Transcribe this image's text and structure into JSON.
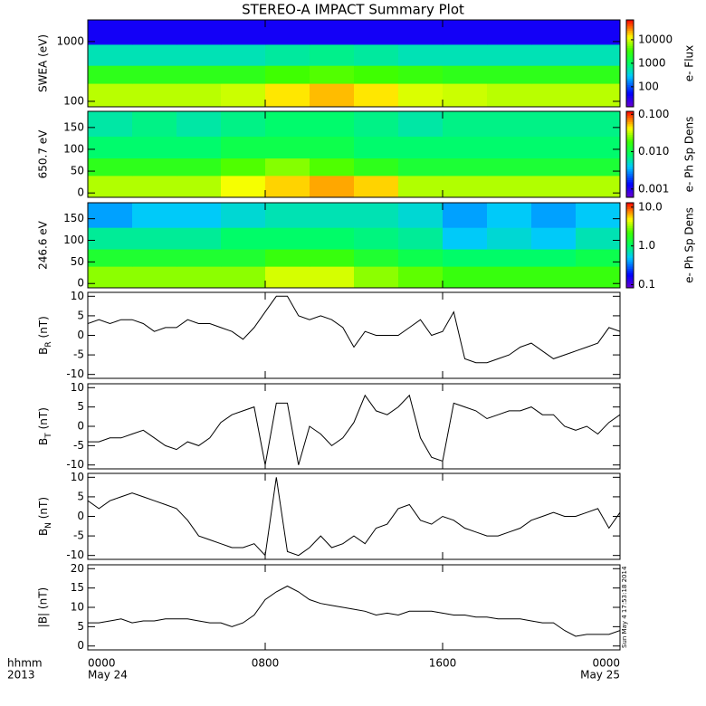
{
  "title": "STEREO-A IMPACT Summary Plot",
  "timestamp": "Sun May  4 17:53:18 2014",
  "x_axis": {
    "xlim": [
      0,
      24
    ],
    "xticks": [
      {
        "value": 0,
        "label": "0000"
      },
      {
        "value": 8,
        "label": "0800"
      },
      {
        "value": 16,
        "label": "1600"
      },
      {
        "value": 24,
        "label": "0000"
      }
    ],
    "xdates": [
      {
        "value": 0,
        "label": "May 24"
      },
      {
        "value": 24,
        "label": "May 25"
      }
    ],
    "row_labels": [
      "hhmm",
      "2013"
    ]
  },
  "chart_data": [
    {
      "type": "heatmap",
      "ylabel": "SWEA (eV)",
      "log": true,
      "ylim": [
        81,
        2300
      ],
      "yticks": [
        100,
        1000
      ],
      "x": [
        0,
        2,
        4,
        6,
        8,
        10,
        12,
        14,
        16,
        18,
        20,
        22,
        24
      ],
      "ybins": [
        81,
        200,
        400,
        900,
        2300
      ],
      "z": [
        [
          8000,
          8000,
          8000,
          9000,
          15000,
          20000,
          15000,
          10000,
          9000,
          8000,
          8000,
          8000
        ],
        [
          2500,
          2500,
          2500,
          2500,
          3500,
          4000,
          3500,
          3000,
          2500,
          2500,
          2500,
          2500
        ],
        [
          500,
          500,
          500,
          500,
          600,
          700,
          600,
          500,
          500,
          500,
          500,
          500
        ],
        [
          40,
          40,
          40,
          40,
          40,
          40,
          40,
          40,
          40,
          40,
          40,
          40
        ]
      ],
      "clim": [
        14,
        70000
      ],
      "cticks": [
        100,
        1000,
        10000
      ],
      "clabel": "e- Flux"
    },
    {
      "type": "heatmap",
      "ylabel": "650.7 eV",
      "ylim": [
        -10,
        187
      ],
      "yticks": [
        0,
        50,
        100,
        150
      ],
      "x": [
        0,
        2,
        4,
        6,
        8,
        10,
        12,
        14,
        16,
        18,
        20,
        22,
        24
      ],
      "ybins": [
        -10,
        40,
        80,
        130,
        187
      ],
      "z": [
        [
          0.03,
          0.03,
          0.03,
          0.04,
          0.05,
          0.06,
          0.05,
          0.03,
          0.03,
          0.03,
          0.03,
          0.03
        ],
        [
          0.015,
          0.015,
          0.015,
          0.02,
          0.025,
          0.02,
          0.015,
          0.012,
          0.012,
          0.012,
          0.012,
          0.012
        ],
        [
          0.008,
          0.008,
          0.008,
          0.01,
          0.01,
          0.01,
          0.008,
          0.008,
          0.008,
          0.008,
          0.008,
          0.008
        ],
        [
          0.006,
          0.007,
          0.006,
          0.007,
          0.008,
          0.008,
          0.007,
          0.006,
          0.007,
          0.007,
          0.007,
          0.007
        ]
      ],
      "clim": [
        0.0006,
        0.12
      ],
      "cticks": [
        0.001,
        {
          "value": 0.01,
          "label": "0.010"
        },
        {
          "value": 0.1,
          "label": "0.100"
        }
      ],
      "clabel": "e- Ph Sp Dens"
    },
    {
      "type": "heatmap",
      "ylabel": "246.6 eV",
      "ylim": [
        -10,
        187
      ],
      "yticks": [
        0,
        50,
        100,
        150
      ],
      "x": [
        0,
        2,
        4,
        6,
        8,
        10,
        12,
        14,
        16,
        18,
        20,
        22,
        24
      ],
      "ybins": [
        -10,
        40,
        80,
        130,
        187
      ],
      "z": [
        [
          3,
          3,
          3,
          3,
          4,
          4,
          3,
          2.5,
          2,
          2,
          2,
          2
        ],
        [
          1.5,
          1.5,
          1.5,
          1.5,
          2,
          2,
          1.5,
          1.2,
          1,
          1,
          1,
          1.2
        ],
        [
          0.8,
          0.8,
          0.8,
          1,
          1,
          1,
          0.9,
          0.8,
          0.5,
          0.6,
          0.5,
          0.7
        ],
        [
          0.4,
          0.5,
          0.5,
          0.6,
          0.7,
          0.7,
          0.7,
          0.6,
          0.4,
          0.5,
          0.4,
          0.5
        ]
      ],
      "clim": [
        0.083,
        13
      ],
      "cticks": [
        0.1,
        {
          "value": 1,
          "label": "1.0"
        },
        {
          "value": 10,
          "label": "10.0"
        }
      ],
      "clabel": "e- Ph Sp Dens"
    },
    {
      "type": "line",
      "ylabel": {
        "main": "B",
        "sub": "R",
        "unit": "(nT)"
      },
      "color": "#000000",
      "ylim": [
        -11,
        11
      ],
      "yticks": [
        -10,
        -5,
        0,
        5,
        10
      ],
      "x": [
        0,
        0.5,
        1,
        1.5,
        2,
        2.5,
        3,
        3.5,
        4,
        4.5,
        5,
        5.5,
        6,
        6.5,
        7,
        7.5,
        8,
        8.5,
        9,
        9.5,
        10,
        10.5,
        11,
        11.5,
        12,
        12.5,
        13,
        13.5,
        14,
        14.5,
        15,
        15.5,
        16,
        16.5,
        17,
        17.5,
        18,
        18.5,
        19,
        19.5,
        20,
        20.5,
        21,
        21.5,
        22,
        22.5,
        23,
        23.5,
        24
      ],
      "values": [
        3,
        4,
        3,
        4,
        4,
        3,
        1,
        2,
        2,
        4,
        3,
        3,
        2,
        1,
        -1,
        2,
        6,
        10,
        10,
        5,
        4,
        5,
        4,
        2,
        -3,
        1,
        0,
        0,
        0,
        2,
        4,
        0,
        1,
        6,
        -6,
        -7,
        -7,
        -6,
        -5,
        -3,
        -2,
        -4,
        -6,
        -5,
        -4,
        -3,
        -2,
        2,
        1
      ]
    },
    {
      "type": "line",
      "ylabel": {
        "main": "B",
        "sub": "T",
        "unit": "(nT)"
      },
      "color": "#000000",
      "ylim": [
        -11,
        11
      ],
      "yticks": [
        -10,
        -5,
        0,
        5,
        10
      ],
      "x": [
        0,
        0.5,
        1,
        1.5,
        2,
        2.5,
        3,
        3.5,
        4,
        4.5,
        5,
        5.5,
        6,
        6.5,
        7,
        7.5,
        8,
        8.5,
        9,
        9.5,
        10,
        10.5,
        11,
        11.5,
        12,
        12.5,
        13,
        13.5,
        14,
        14.5,
        15,
        15.5,
        16,
        16.5,
        17,
        17.5,
        18,
        18.5,
        19,
        19.5,
        20,
        20.5,
        21,
        21.5,
        22,
        22.5,
        23,
        23.5,
        24
      ],
      "values": [
        -4,
        -4,
        -3,
        -3,
        -2,
        -1,
        -3,
        -5,
        -6,
        -4,
        -5,
        -3,
        1,
        3,
        4,
        5,
        -10,
        6,
        6,
        -10,
        0,
        -2,
        -5,
        -3,
        1,
        8,
        4,
        3,
        5,
        8,
        -3,
        -8,
        -9,
        6,
        5,
        4,
        2,
        3,
        4,
        4,
        5,
        3,
        3,
        0,
        -1,
        0,
        -2,
        1,
        3
      ]
    },
    {
      "type": "line",
      "ylabel": {
        "main": "B",
        "sub": "N",
        "unit": "(nT)"
      },
      "color": "#000000",
      "ylim": [
        -11,
        11
      ],
      "yticks": [
        -10,
        -5,
        0,
        5,
        10
      ],
      "x": [
        0,
        0.5,
        1,
        1.5,
        2,
        2.5,
        3,
        3.5,
        4,
        4.5,
        5,
        5.5,
        6,
        6.5,
        7,
        7.5,
        8,
        8.5,
        9,
        9.5,
        10,
        10.5,
        11,
        11.5,
        12,
        12.5,
        13,
        13.5,
        14,
        14.5,
        15,
        15.5,
        16,
        16.5,
        17,
        17.5,
        18,
        18.5,
        19,
        19.5,
        20,
        20.5,
        21,
        21.5,
        22,
        22.5,
        23,
        23.5,
        24
      ],
      "values": [
        4,
        2,
        4,
        5,
        6,
        5,
        4,
        3,
        2,
        -1,
        -5,
        -6,
        -7,
        -8,
        -8,
        -7,
        -10,
        10,
        -9,
        -10,
        -8,
        -5,
        -8,
        -7,
        -5,
        -7,
        -3,
        -2,
        2,
        3,
        -1,
        -2,
        0,
        -1,
        -3,
        -4,
        -5,
        -5,
        -4,
        -3,
        -1,
        0,
        1,
        0,
        0,
        1,
        2,
        -3,
        1
      ]
    },
    {
      "type": "line",
      "ylabel": "|B| (nT)",
      "color": "#000000",
      "ylim": [
        -1,
        21
      ],
      "yticks": [
        0,
        5,
        10,
        15,
        20
      ],
      "x": [
        0,
        0.5,
        1,
        1.5,
        2,
        2.5,
        3,
        3.5,
        4,
        4.5,
        5,
        5.5,
        6,
        6.5,
        7,
        7.5,
        8,
        8.5,
        9,
        9.5,
        10,
        10.5,
        11,
        11.5,
        12,
        12.5,
        13,
        13.5,
        14,
        14.5,
        15,
        15.5,
        16,
        16.5,
        17,
        17.5,
        18,
        18.5,
        19,
        19.5,
        20,
        20.5,
        21,
        21.5,
        22,
        22.5,
        23,
        23.5,
        24
      ],
      "values": [
        6,
        6,
        6.5,
        7,
        6,
        6.5,
        6.5,
        7,
        7,
        7,
        6.5,
        6,
        6,
        5,
        6,
        8,
        12,
        14,
        15.5,
        14,
        12,
        11,
        10.5,
        10,
        9.5,
        9,
        8,
        8.5,
        8,
        9,
        9,
        9,
        8.5,
        8,
        8,
        7.5,
        7.5,
        7,
        7,
        7,
        6.5,
        6,
        6,
        4,
        2.5,
        3,
        3,
        3,
        4
      ]
    }
  ]
}
